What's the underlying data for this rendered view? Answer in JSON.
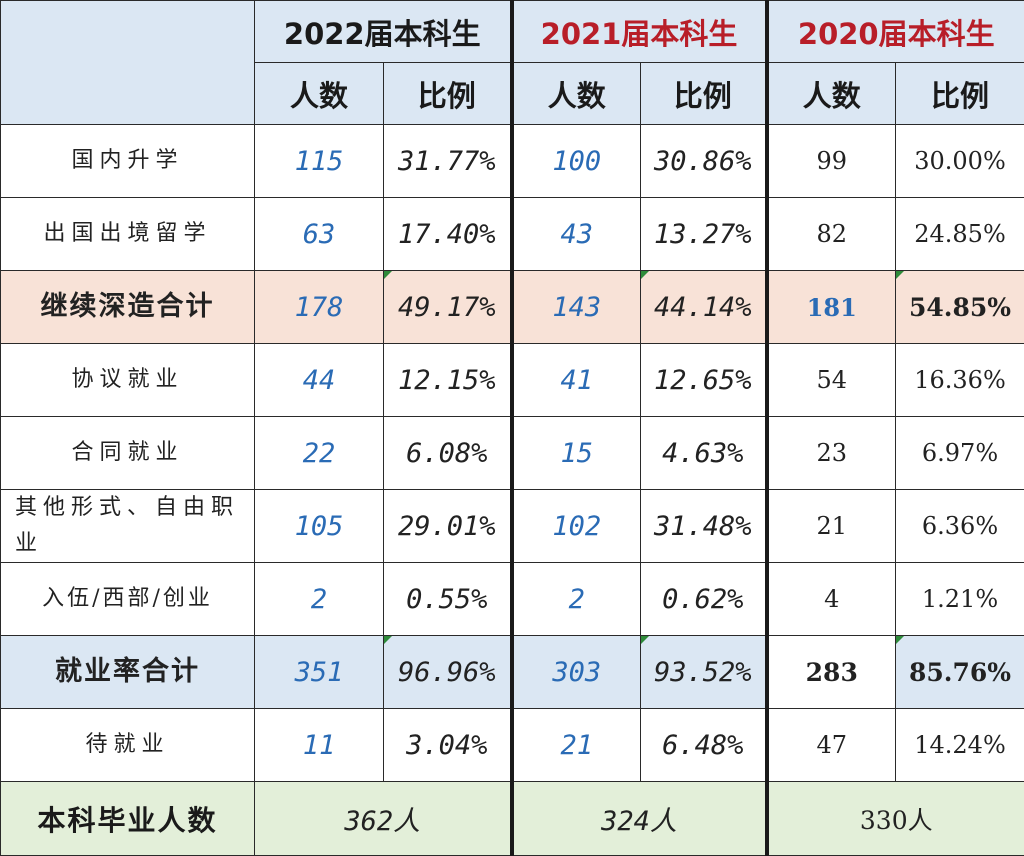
{
  "header": {
    "years": [
      {
        "label": "2022届本科生",
        "color": "#1a1a1a"
      },
      {
        "label": "2021届本科生",
        "color": "#b81e28"
      },
      {
        "label": "2020届本科生",
        "color": "#b81e28"
      }
    ],
    "sub": {
      "count": "人数",
      "ratio": "比例"
    }
  },
  "rows": [
    {
      "label": "国内升学",
      "v": [
        "115",
        "31.77%",
        "100",
        "30.86%",
        "99",
        "30.00%"
      ]
    },
    {
      "label": "出国出境留学",
      "v": [
        "63",
        "17.40%",
        "43",
        "13.27%",
        "82",
        "24.85%"
      ]
    },
    {
      "label": "继续深造合计",
      "v": [
        "178",
        "49.17%",
        "143",
        "44.14%",
        "181",
        "54.85%"
      ]
    },
    {
      "label": "协议就业",
      "v": [
        "44",
        "12.15%",
        "41",
        "12.65%",
        "54",
        "16.36%"
      ]
    },
    {
      "label": "合同就业",
      "v": [
        "22",
        "6.08%",
        "15",
        "4.63%",
        "23",
        "6.97%"
      ]
    },
    {
      "label": "其他形式、自由职业",
      "v": [
        "105",
        "29.01%",
        "102",
        "31.48%",
        "21",
        "6.36%"
      ]
    },
    {
      "label": "入伍/西部/创业",
      "v": [
        "2",
        "0.55%",
        "2",
        "0.62%",
        "4",
        "1.21%"
      ]
    },
    {
      "label": "就业率合计",
      "v": [
        "351",
        "96.96%",
        "303",
        "93.52%",
        "283",
        "85.76%"
      ]
    },
    {
      "label": "待就业",
      "v": [
        "11",
        "3.04%",
        "21",
        "6.48%",
        "47",
        "14.24%"
      ]
    }
  ],
  "footer": {
    "label": "本科毕业人数",
    "totals": [
      "362人",
      "324人",
      "330人"
    ]
  }
}
